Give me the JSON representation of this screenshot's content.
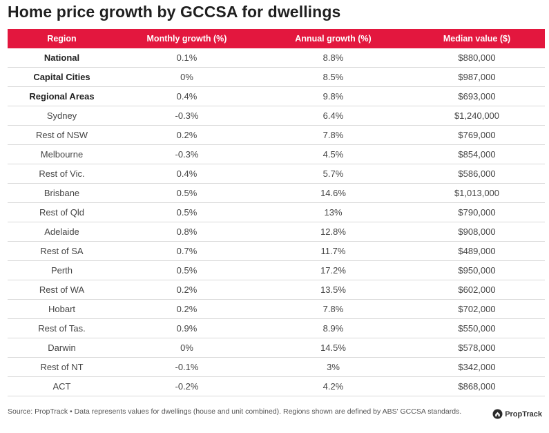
{
  "title": "Home price growth by GCCSA for dwellings",
  "chart_data": {
    "type": "table",
    "title": "Home price growth by GCCSA for dwellings",
    "columns": [
      "Region",
      "Monthly growth (%)",
      "Annual growth (%)",
      "Median value ($)"
    ],
    "rows": [
      {
        "region": "National",
        "monthly": "0.1%",
        "annual": "8.8%",
        "median": "$880,000",
        "bold": true
      },
      {
        "region": "Capital Cities",
        "monthly": "0%",
        "annual": "8.5%",
        "median": "$987,000",
        "bold": true
      },
      {
        "region": "Regional Areas",
        "monthly": "0.4%",
        "annual": "9.8%",
        "median": "$693,000",
        "bold": true
      },
      {
        "region": "Sydney",
        "monthly": "-0.3%",
        "annual": "6.4%",
        "median": "$1,240,000",
        "bold": false
      },
      {
        "region": "Rest of NSW",
        "monthly": "0.2%",
        "annual": "7.8%",
        "median": "$769,000",
        "bold": false
      },
      {
        "region": "Melbourne",
        "monthly": "-0.3%",
        "annual": "4.5%",
        "median": "$854,000",
        "bold": false
      },
      {
        "region": "Rest of Vic.",
        "monthly": "0.4%",
        "annual": "5.7%",
        "median": "$586,000",
        "bold": false
      },
      {
        "region": "Brisbane",
        "monthly": "0.5%",
        "annual": "14.6%",
        "median": "$1,013,000",
        "bold": false
      },
      {
        "region": "Rest of Qld",
        "monthly": "0.5%",
        "annual": "13%",
        "median": "$790,000",
        "bold": false
      },
      {
        "region": "Adelaide",
        "monthly": "0.8%",
        "annual": "12.8%",
        "median": "$908,000",
        "bold": false
      },
      {
        "region": "Rest of SA",
        "monthly": "0.7%",
        "annual": "11.7%",
        "median": "$489,000",
        "bold": false
      },
      {
        "region": "Perth",
        "monthly": "0.5%",
        "annual": "17.2%",
        "median": "$950,000",
        "bold": false
      },
      {
        "region": "Rest of WA",
        "monthly": "0.2%",
        "annual": "13.5%",
        "median": "$602,000",
        "bold": false
      },
      {
        "region": "Hobart",
        "monthly": "0.2%",
        "annual": "7.8%",
        "median": "$702,000",
        "bold": false
      },
      {
        "region": "Rest of Tas.",
        "monthly": "0.9%",
        "annual": "8.9%",
        "median": "$550,000",
        "bold": false
      },
      {
        "region": "Darwin",
        "monthly": "0%",
        "annual": "14.5%",
        "median": "$578,000",
        "bold": false
      },
      {
        "region": "Rest of NT",
        "monthly": "-0.1%",
        "annual": "3%",
        "median": "$342,000",
        "bold": false
      },
      {
        "region": "ACT",
        "monthly": "-0.2%",
        "annual": "4.2%",
        "median": "$868,000",
        "bold": false
      }
    ]
  },
  "footer": {
    "source": "Source: PropTrack • Data represents values for dwellings (house and unit combined). Regions shown are defined by ABS' GCCSA standards."
  },
  "brand": {
    "name": "PropTrack",
    "icon": "proptrack-logo-icon"
  },
  "colors": {
    "header_bg": "#e3173e",
    "header_text": "#ffffff",
    "row_border": "#d9d9d9"
  }
}
